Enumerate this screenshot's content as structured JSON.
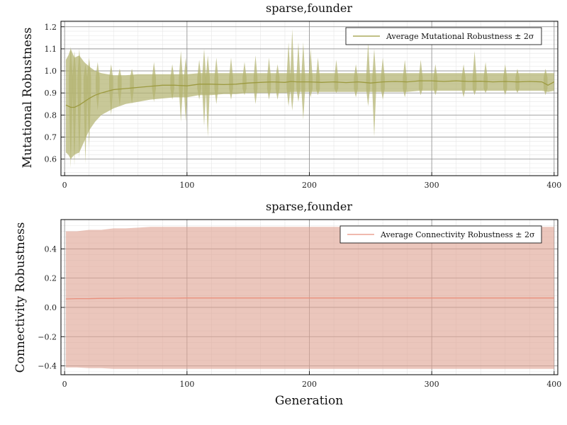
{
  "chart_data": [
    {
      "type": "line",
      "title": "sparse,founder",
      "xlabel": "",
      "ylabel": "Mutational Robustness",
      "xlim": [
        -3,
        403
      ],
      "ylim": [
        0.525,
        1.225
      ],
      "x_ticks": [
        0,
        100,
        200,
        300,
        400
      ],
      "y_ticks": [
        0.6,
        0.7,
        0.8,
        0.9,
        1.0,
        1.1,
        1.2
      ],
      "y_tick_labels": [
        "0.6",
        "0.7",
        "0.8",
        "0.9",
        "1.0",
        "1.1",
        "1.2"
      ],
      "grid": true,
      "legend_position": "top-right",
      "line_color": "#9c9a3f",
      "fill_color": "#b3b370",
      "series": [
        {
          "name": "Average Mutational Robustness ± 2σ",
          "x": [
            1,
            3,
            5,
            8,
            12,
            16,
            20,
            25,
            30,
            40,
            50,
            60,
            70,
            80,
            90,
            100,
            110,
            120,
            130,
            140,
            150,
            160,
            170,
            180,
            185,
            190,
            200,
            210,
            220,
            230,
            240,
            250,
            260,
            270,
            280,
            290,
            300,
            310,
            320,
            330,
            340,
            350,
            360,
            370,
            380,
            390,
            395,
            400
          ],
          "mean": [
            0.845,
            0.84,
            0.835,
            0.835,
            0.845,
            0.86,
            0.875,
            0.89,
            0.9,
            0.915,
            0.92,
            0.925,
            0.93,
            0.935,
            0.935,
            0.932,
            0.94,
            0.94,
            0.938,
            0.94,
            0.945,
            0.948,
            0.95,
            0.948,
            0.952,
            0.95,
            0.95,
            0.948,
            0.95,
            0.947,
            0.95,
            0.945,
            0.95,
            0.952,
            0.95,
            0.955,
            0.955,
            0.952,
            0.955,
            0.952,
            0.953,
            0.95,
            0.952,
            0.95,
            0.952,
            0.95,
            0.935,
            0.95
          ],
          "upper": [
            1.05,
            1.07,
            1.1,
            1.06,
            1.07,
            1.04,
            1.02,
            1.0,
            0.99,
            0.98,
            0.98,
            0.985,
            0.985,
            0.985,
            0.985,
            0.985,
            0.99,
            0.99,
            0.99,
            0.99,
            0.99,
            0.99,
            0.99,
            0.99,
            0.99,
            0.99,
            0.99,
            0.99,
            0.99,
            0.99,
            0.99,
            0.99,
            0.99,
            0.99,
            0.99,
            0.99,
            0.99,
            0.99,
            0.99,
            0.99,
            0.99,
            0.99,
            0.99,
            0.99,
            0.99,
            0.99,
            0.99,
            0.99
          ],
          "lower": [
            0.63,
            0.62,
            0.6,
            0.62,
            0.63,
            0.68,
            0.73,
            0.77,
            0.8,
            0.83,
            0.85,
            0.86,
            0.87,
            0.875,
            0.88,
            0.88,
            0.89,
            0.89,
            0.895,
            0.895,
            0.9,
            0.9,
            0.9,
            0.9,
            0.905,
            0.905,
            0.905,
            0.905,
            0.905,
            0.905,
            0.905,
            0.905,
            0.905,
            0.905,
            0.905,
            0.91,
            0.91,
            0.91,
            0.91,
            0.91,
            0.91,
            0.91,
            0.91,
            0.91,
            0.91,
            0.91,
            0.905,
            0.91
          ]
        }
      ],
      "spikes": [
        {
          "x": 5,
          "lo": 0.56,
          "hi": 1.11
        },
        {
          "x": 8,
          "lo": 0.57,
          "hi": 1.09
        },
        {
          "x": 12,
          "lo": 0.6,
          "hi": 1.1
        },
        {
          "x": 17,
          "lo": 0.58,
          "hi": 1.03
        },
        {
          "x": 20,
          "lo": 0.65,
          "hi": 1.06
        },
        {
          "x": 27,
          "lo": 0.82,
          "hi": 1.04
        },
        {
          "x": 38,
          "lo": 0.8,
          "hi": 1.03
        },
        {
          "x": 45,
          "lo": 0.84,
          "hi": 1.01
        },
        {
          "x": 55,
          "lo": 0.85,
          "hi": 1.01
        },
        {
          "x": 73,
          "lo": 0.86,
          "hi": 1.04
        },
        {
          "x": 88,
          "lo": 0.87,
          "hi": 1.03
        },
        {
          "x": 95,
          "lo": 0.77,
          "hi": 1.09
        },
        {
          "x": 99,
          "lo": 0.77,
          "hi": 1.06
        },
        {
          "x": 110,
          "lo": 0.87,
          "hi": 1.05
        },
        {
          "x": 114,
          "lo": 0.75,
          "hi": 1.1
        },
        {
          "x": 117,
          "lo": 0.7,
          "hi": 1.07
        },
        {
          "x": 124,
          "lo": 0.85,
          "hi": 1.06
        },
        {
          "x": 136,
          "lo": 0.87,
          "hi": 1.06
        },
        {
          "x": 147,
          "lo": 0.89,
          "hi": 1.04
        },
        {
          "x": 156,
          "lo": 0.85,
          "hi": 1.07
        },
        {
          "x": 167,
          "lo": 0.87,
          "hi": 1.06
        },
        {
          "x": 174,
          "lo": 0.87,
          "hi": 1.03
        },
        {
          "x": 183,
          "lo": 0.84,
          "hi": 1.13
        },
        {
          "x": 186,
          "lo": 0.82,
          "hi": 1.19
        },
        {
          "x": 191,
          "lo": 0.86,
          "hi": 1.13
        },
        {
          "x": 195,
          "lo": 0.78,
          "hi": 1.13
        },
        {
          "x": 201,
          "lo": 0.88,
          "hi": 1.1
        },
        {
          "x": 207,
          "lo": 0.89,
          "hi": 1.06
        },
        {
          "x": 222,
          "lo": 0.9,
          "hi": 1.05
        },
        {
          "x": 238,
          "lo": 0.88,
          "hi": 1.03
        },
        {
          "x": 248,
          "lo": 0.84,
          "hi": 1.13
        },
        {
          "x": 253,
          "lo": 0.7,
          "hi": 1.1
        },
        {
          "x": 260,
          "lo": 0.87,
          "hi": 1.06
        },
        {
          "x": 278,
          "lo": 0.88,
          "hi": 1.05
        },
        {
          "x": 291,
          "lo": 0.89,
          "hi": 1.05
        },
        {
          "x": 303,
          "lo": 0.89,
          "hi": 1.03
        },
        {
          "x": 326,
          "lo": 0.88,
          "hi": 1.03
        },
        {
          "x": 335,
          "lo": 0.89,
          "hi": 1.09
        },
        {
          "x": 344,
          "lo": 0.9,
          "hi": 1.04
        },
        {
          "x": 360,
          "lo": 0.89,
          "hi": 1.03
        },
        {
          "x": 370,
          "lo": 0.9,
          "hi": 1.01
        },
        {
          "x": 393,
          "lo": 0.89,
          "hi": 1.01
        }
      ]
    },
    {
      "type": "line",
      "title": "sparse,founder",
      "xlabel": "Generation",
      "ylabel": "Connectivity Robustness",
      "xlim": [
        -3,
        403
      ],
      "ylim": [
        -0.46,
        0.6
      ],
      "x_ticks": [
        0,
        100,
        200,
        300,
        400
      ],
      "y_ticks": [
        -0.4,
        -0.2,
        0.0,
        0.2,
        0.4
      ],
      "y_tick_labels": [
        "−0.4",
        "−0.2",
        "0.0",
        "0.2",
        "0.4"
      ],
      "grid": true,
      "legend_position": "top-right",
      "line_color": "#e8907d",
      "fill_color": "#dea393",
      "series": [
        {
          "name": "Average Connectivity Robustness ± 2σ",
          "x": [
            1,
            10,
            20,
            30,
            40,
            50,
            60,
            70,
            80,
            90,
            100,
            120,
            140,
            160,
            180,
            200,
            220,
            240,
            260,
            280,
            300,
            320,
            340,
            360,
            380,
            400
          ],
          "mean": [
            0.058,
            0.06,
            0.06,
            0.062,
            0.062,
            0.063,
            0.063,
            0.063,
            0.063,
            0.063,
            0.064,
            0.064,
            0.064,
            0.064,
            0.064,
            0.064,
            0.064,
            0.064,
            0.064,
            0.064,
            0.064,
            0.064,
            0.064,
            0.064,
            0.064,
            0.064
          ],
          "upper": [
            0.52,
            0.52,
            0.53,
            0.53,
            0.54,
            0.54,
            0.545,
            0.55,
            0.55,
            0.55,
            0.55,
            0.55,
            0.55,
            0.55,
            0.55,
            0.55,
            0.55,
            0.55,
            0.55,
            0.55,
            0.55,
            0.55,
            0.55,
            0.55,
            0.55,
            0.55
          ],
          "lower": [
            -0.41,
            -0.41,
            -0.415,
            -0.415,
            -0.42,
            -0.42,
            -0.42,
            -0.42,
            -0.42,
            -0.42,
            -0.42,
            -0.42,
            -0.42,
            -0.42,
            -0.42,
            -0.42,
            -0.42,
            -0.42,
            -0.42,
            -0.42,
            -0.42,
            -0.42,
            -0.42,
            -0.42,
            -0.42,
            -0.42
          ]
        }
      ]
    }
  ]
}
